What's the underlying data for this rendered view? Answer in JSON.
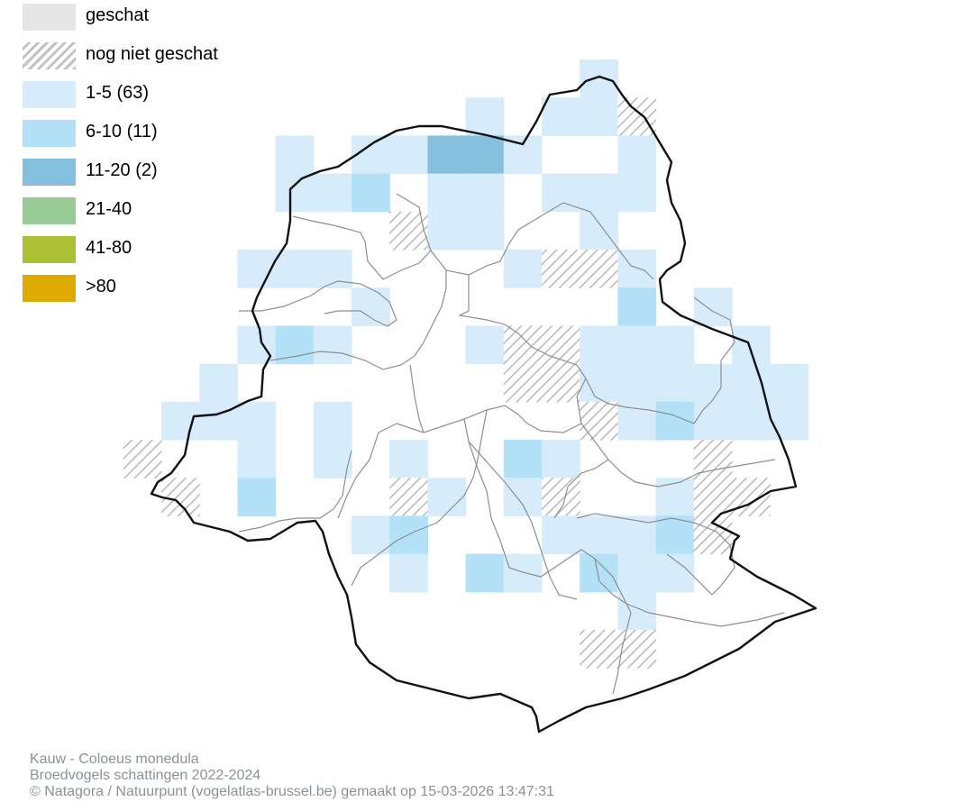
{
  "map": {
    "legend": [
      {
        "key": "geschat",
        "label": "geschat",
        "color": "#e6e6e6"
      },
      {
        "key": "nog_niet_geschat",
        "label": "nog niet geschat",
        "color": "hatch"
      },
      {
        "key": "c1_5",
        "label": "1-5 (63)",
        "color": "#d6ecfa"
      },
      {
        "key": "c6_10",
        "label": "6-10 (11)",
        "color": "#b3e1f8"
      },
      {
        "key": "c11_20",
        "label": "11-20 (2)",
        "color": "#85c1df"
      },
      {
        "key": "c21_40",
        "label": "21-40",
        "color": "#98cb96"
      },
      {
        "key": "c41_80",
        "label": "41-80",
        "color": "#adc033"
      },
      {
        "key": "c80",
        "label": ">80",
        "color": "#e0ab00"
      }
    ],
    "footer": {
      "species": "Kauw - Coloeus monedula",
      "dataset": "Broedvogels schattingen 2022-2024",
      "credit": "© Natagora / Natuurpunt (vogelatlas-brussel.be) gemaakt op 15-03-2026 13:47:31"
    }
  }
}
